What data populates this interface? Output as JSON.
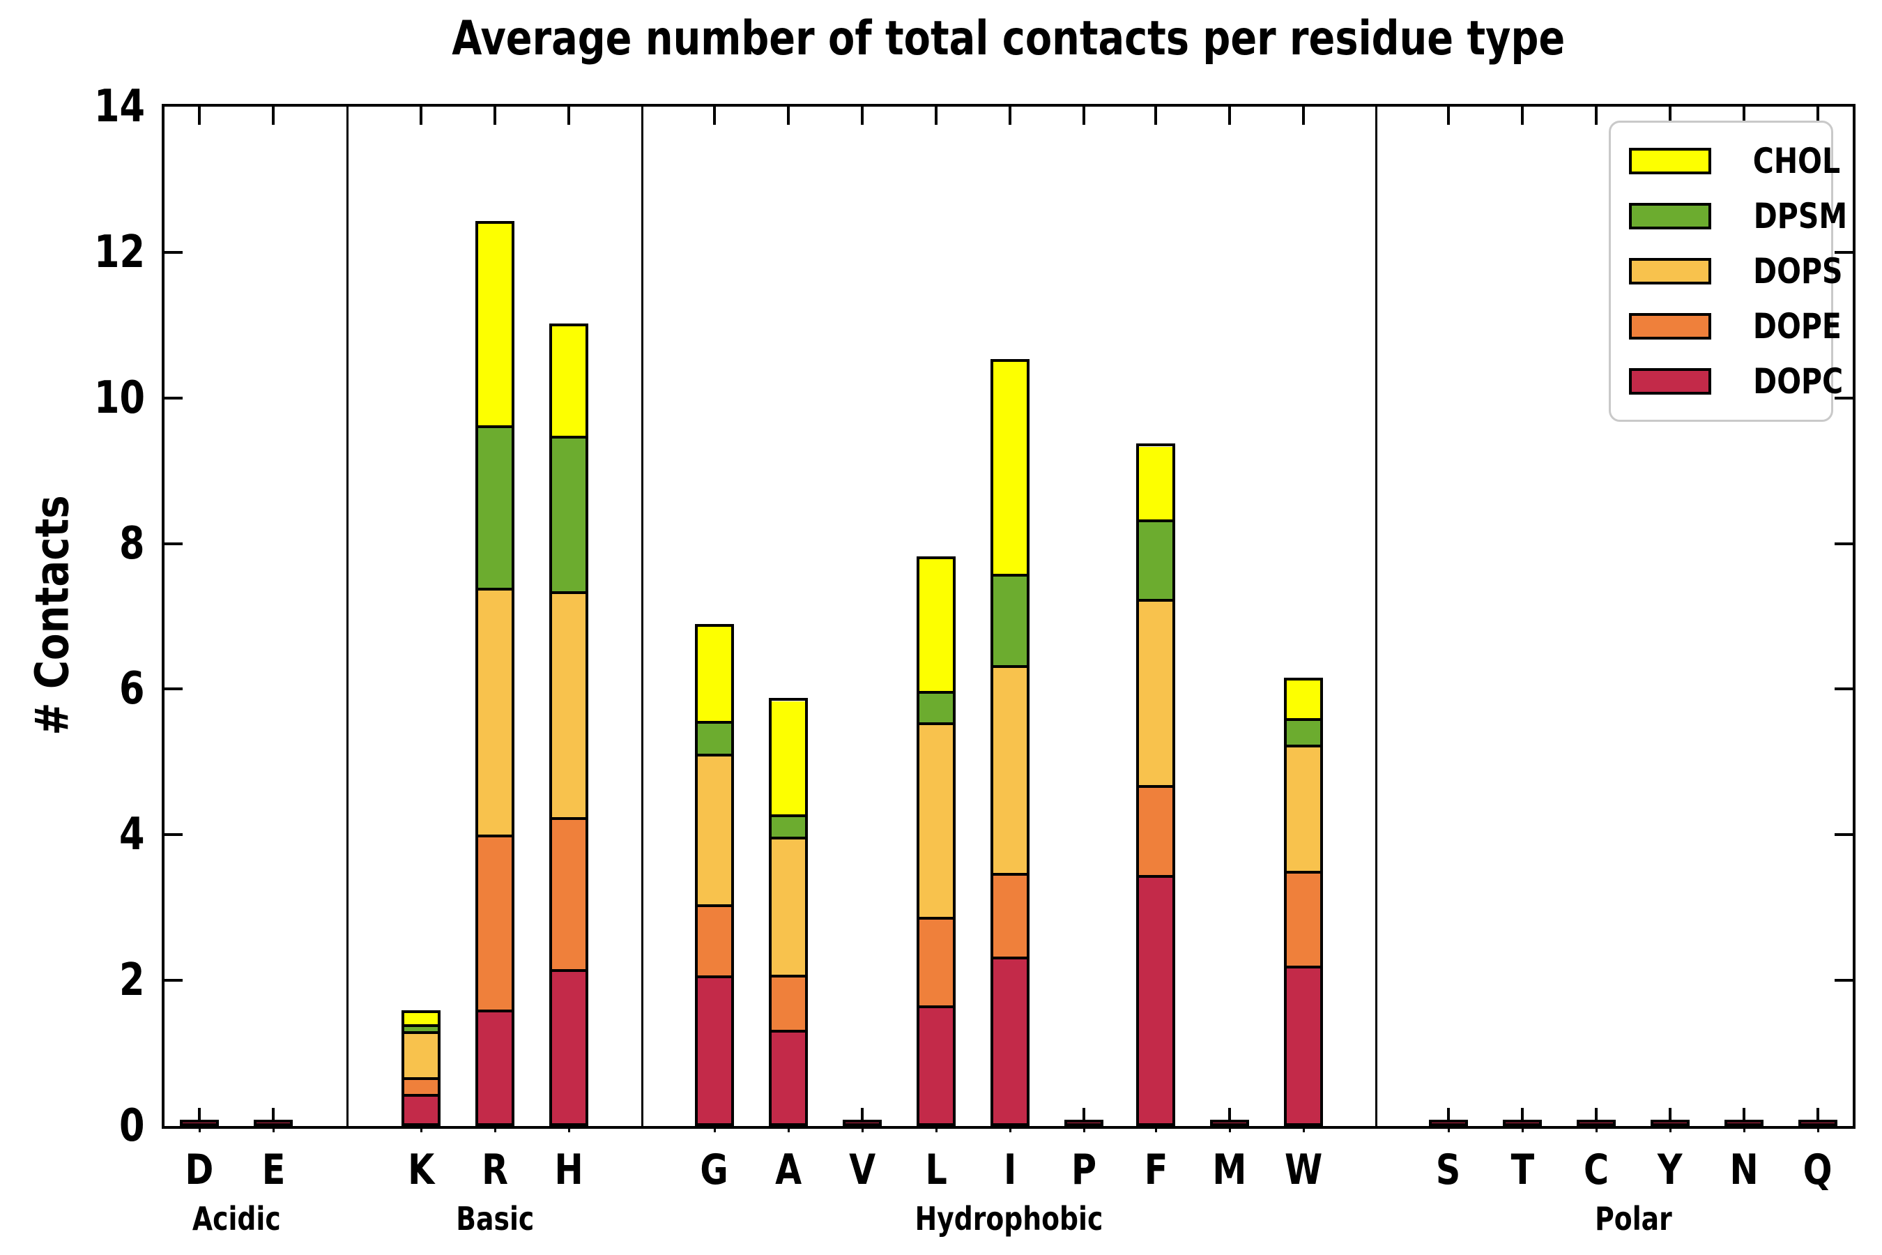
{
  "title": "Average number of total contacts per residue type",
  "axes": {
    "ylabel": "# Contacts",
    "yticks": [
      0,
      2,
      4,
      6,
      8,
      10,
      12,
      14
    ],
    "ylim": [
      0,
      14
    ]
  },
  "legend": {
    "entries": [
      {
        "label": "CHOL",
        "color": "#FDFF00"
      },
      {
        "label": "DPSM",
        "color": "#6CAC2F"
      },
      {
        "label": "DOPS",
        "color": "#F8C24D"
      },
      {
        "label": "DOPE",
        "color": "#EF803B"
      },
      {
        "label": "DOPC",
        "color": "#C32A49"
      }
    ]
  },
  "chart_data": {
    "type": "bar",
    "stacked": true,
    "title": "Average number of total contacts per residue type",
    "xlabel": "",
    "ylabel": "# Contacts",
    "ylim": [
      0,
      14
    ],
    "grid": false,
    "legend_position": "upper right",
    "stack_order_bottom_to_top": [
      "DOPC",
      "DOPE",
      "DOPS",
      "DPSM",
      "CHOL"
    ],
    "groups": [
      {
        "label": "Acidic",
        "categories": [
          "D",
          "E"
        ]
      },
      {
        "label": "Basic",
        "categories": [
          "K",
          "R",
          "H"
        ]
      },
      {
        "label": "Hydrophobic",
        "categories": [
          "G",
          "A",
          "V",
          "L",
          "I",
          "P",
          "F",
          "M",
          "W"
        ]
      },
      {
        "label": "Polar",
        "categories": [
          "S",
          "T",
          "C",
          "Y",
          "N",
          "Q"
        ]
      }
    ],
    "categories": [
      "D",
      "E",
      "K",
      "R",
      "H",
      "G",
      "A",
      "V",
      "L",
      "I",
      "P",
      "F",
      "M",
      "W",
      "S",
      "T",
      "C",
      "Y",
      "N",
      "Q"
    ],
    "series": [
      {
        "name": "DOPC",
        "color": "#C32A49",
        "values": [
          0.01,
          0.01,
          0.4,
          1.56,
          2.12,
          2.03,
          1.28,
          0.01,
          1.62,
          2.29,
          0.01,
          3.41,
          0.01,
          2.16,
          0.01,
          0.01,
          0.01,
          0.01,
          0.01,
          0.01
        ]
      },
      {
        "name": "DOPE",
        "color": "#EF803B",
        "values": [
          0,
          0,
          0.23,
          2.4,
          2.09,
          0.98,
          0.76,
          0,
          1.22,
          1.15,
          0,
          1.24,
          0,
          1.31,
          0,
          0,
          0,
          0,
          0,
          0
        ]
      },
      {
        "name": "DOPS",
        "color": "#F8C24D",
        "values": [
          0,
          0,
          0.63,
          3.39,
          3.1,
          2.07,
          1.9,
          0,
          2.67,
          2.86,
          0,
          2.56,
          0,
          1.73,
          0,
          0,
          0,
          0,
          0,
          0
        ]
      },
      {
        "name": "DPSM",
        "color": "#6CAC2F",
        "values": [
          0,
          0,
          0.1,
          2.23,
          2.14,
          0.45,
          0.31,
          0,
          0.43,
          1.25,
          0,
          1.09,
          0,
          0.36,
          0,
          0,
          0,
          0,
          0,
          0
        ]
      },
      {
        "name": "CHOL",
        "color": "#FDFF00",
        "values": [
          0,
          0,
          0.15,
          2.77,
          1.5,
          1.29,
          1.55,
          0,
          1.81,
          2.91,
          0,
          1.0,
          0,
          0.52,
          0,
          0,
          0,
          0,
          0,
          0
        ]
      }
    ],
    "totals": {
      "D": 0.01,
      "E": 0.01,
      "K": 1.51,
      "R": 12.35,
      "H": 10.95,
      "G": 6.82,
      "A": 5.8,
      "V": 0.01,
      "L": 7.75,
      "I": 10.46,
      "P": 0.01,
      "F": 9.3,
      "M": 0.01,
      "W": 6.08,
      "S": 0.01,
      "T": 0.01,
      "C": 0.01,
      "Y": 0.01,
      "N": 0.01,
      "Q": 0.01
    }
  }
}
